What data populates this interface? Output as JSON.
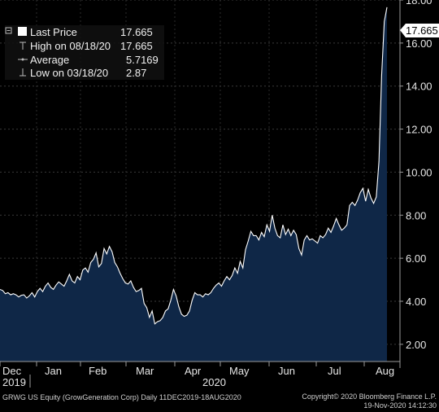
{
  "chart_data": {
    "type": "area",
    "ylim": [
      1.2,
      18
    ],
    "yticks": [
      "2.00",
      "4.00",
      "6.00",
      "8.00",
      "10.00",
      "12.00",
      "14.00",
      "16.00",
      "18.00"
    ],
    "months": [
      "Dec",
      "Jan",
      "Feb",
      "Mar",
      "Apr",
      "May",
      "Jun",
      "Jul",
      "Aug"
    ],
    "years": [
      "2019",
      "2020"
    ],
    "grid": true,
    "legend_position": "top-left",
    "colors": {
      "fill": "#0f2747",
      "line": "#ffffff",
      "background": "#000000"
    },
    "legend": [
      {
        "label": "Last Price",
        "value": "17.665"
      },
      {
        "label": "High on 08/18/20",
        "value": "17.665"
      },
      {
        "label": "Average",
        "value": "5.7169"
      },
      {
        "label": "Low on 03/18/20",
        "value": "2.87"
      }
    ],
    "last_price_badge": "17.665",
    "series": [
      {
        "values": [
          4.55,
          4.5,
          4.35,
          4.4,
          4.3,
          4.35,
          4.3,
          4.2,
          4.28,
          4.3,
          4.15,
          4.25,
          4.4,
          4.2,
          4.45,
          4.6,
          4.45,
          4.7,
          4.85,
          4.65,
          4.55,
          4.75,
          4.9,
          4.8,
          4.7,
          4.95,
          5.25,
          4.95,
          4.85,
          5.15,
          5.0,
          5.45,
          5.55,
          5.35,
          5.8,
          5.95,
          6.25,
          5.6,
          5.75,
          6.45,
          6.2,
          6.55,
          6.3,
          5.8,
          5.6,
          5.3,
          5.05,
          4.85,
          4.8,
          4.95,
          4.65,
          4.45,
          4.5,
          4.6,
          3.9,
          3.7,
          3.25,
          3.55,
          2.95,
          3.05,
          3.1,
          3.25,
          3.55,
          3.65,
          4.05,
          4.55,
          4.25,
          3.75,
          3.4,
          3.3,
          3.35,
          3.55,
          4.05,
          4.4,
          4.3,
          4.3,
          4.2,
          4.35,
          4.3,
          4.4,
          4.6,
          4.75,
          4.85,
          4.7,
          4.95,
          5.15,
          5.0,
          5.2,
          5.55,
          5.3,
          5.85,
          5.55,
          6.4,
          6.8,
          7.25,
          7.05,
          7.05,
          6.85,
          7.2,
          7.0,
          7.55,
          7.25,
          8.0,
          7.4,
          7.05,
          6.95,
          7.55,
          7.1,
          7.35,
          7.05,
          7.3,
          7.1,
          6.45,
          6.15,
          6.85,
          7.05,
          6.85,
          6.9,
          6.8,
          6.7,
          7.05,
          6.95,
          7.1,
          7.4,
          7.2,
          7.5,
          7.85,
          7.55,
          7.3,
          7.4,
          7.55,
          8.45,
          8.6,
          8.45,
          8.7,
          9.05,
          9.25,
          8.65,
          9.2,
          8.8,
          8.55,
          8.85,
          10.5,
          14.5,
          17.0,
          17.665
        ]
      }
    ]
  },
  "footer": {
    "left": "GRWG US Equity (GrowGeneration Corp)  Daily 11DEC2019-18AUG2020",
    "right1": "Copyright© 2020 Bloomberg Finance L.P.",
    "right2": "19-Nov-2020 14:12:30"
  }
}
